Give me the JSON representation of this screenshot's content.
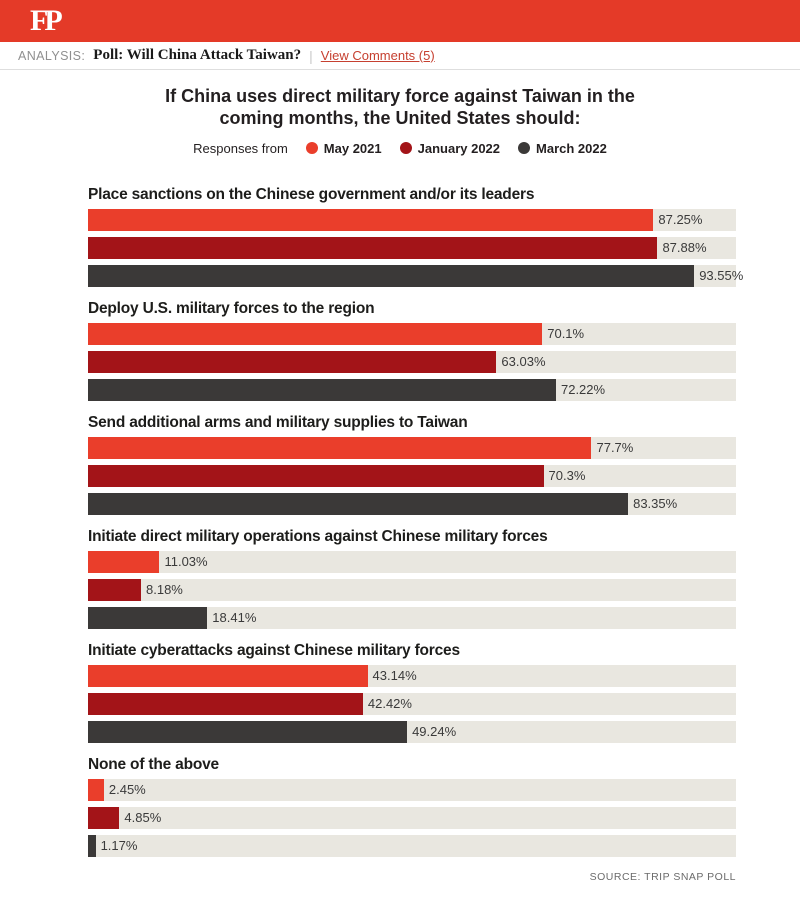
{
  "page": {
    "brand": "FP",
    "kicker": "ANALYSIS:",
    "article_title": "Poll: Will China Attack Taiwan?",
    "separator": "|",
    "comments_link": "View Comments (5)",
    "source": "SOURCE: TRIP SNAP POLL"
  },
  "chart_data": {
    "type": "bar",
    "orientation": "horizontal",
    "title": "If China uses direct military force against Taiwan in the coming months, the United States should:",
    "title_lines": [
      "If China uses direct military force against Taiwan in the",
      "coming months, the United States should:"
    ],
    "legend_label": "Responses from",
    "legend_position": "top-center",
    "xlim": [
      0,
      100
    ],
    "grid": false,
    "track_color": "#E9E7E0",
    "series": [
      {
        "name": "May 2021",
        "color": "#EA3E2B"
      },
      {
        "name": "January 2022",
        "color": "#A31418"
      },
      {
        "name": "March 2022",
        "color": "#3B3938"
      }
    ],
    "categories": [
      "Place sanctions on the Chinese government and/or its leaders",
      "Deploy U.S. military forces to the region",
      "Send additional arms and military supplies to Taiwan",
      "Initiate direct military operations against Chinese military forces",
      "Initiate cyberattacks against Chinese military forces",
      "None of the above"
    ],
    "groups": [
      {
        "category": "Place sanctions on the Chinese government and/or its leaders",
        "values": [
          87.25,
          87.88,
          93.55
        ],
        "labels": [
          "87.25%",
          "87.88%",
          "93.55%"
        ]
      },
      {
        "category": "Deploy U.S. military forces to the region",
        "values": [
          70.1,
          63.03,
          72.22
        ],
        "labels": [
          "70.1%",
          "63.03%",
          "72.22%"
        ]
      },
      {
        "category": "Send additional arms and military supplies to Taiwan",
        "values": [
          77.7,
          70.3,
          83.35
        ],
        "labels": [
          "77.7%",
          "70.3%",
          "83.35%"
        ]
      },
      {
        "category": "Initiate direct military operations against Chinese military forces",
        "values": [
          11.03,
          8.18,
          18.41
        ],
        "labels": [
          "11.03%",
          "8.18%",
          "18.41%"
        ]
      },
      {
        "category": "Initiate cyberattacks against Chinese military forces",
        "values": [
          43.14,
          42.42,
          49.24
        ],
        "labels": [
          "43.14%",
          "42.42%",
          "49.24%"
        ]
      },
      {
        "category": "None of the above",
        "values": [
          2.45,
          4.85,
          1.17
        ],
        "labels": [
          "2.45%",
          "4.85%",
          "1.17%"
        ]
      }
    ]
  }
}
